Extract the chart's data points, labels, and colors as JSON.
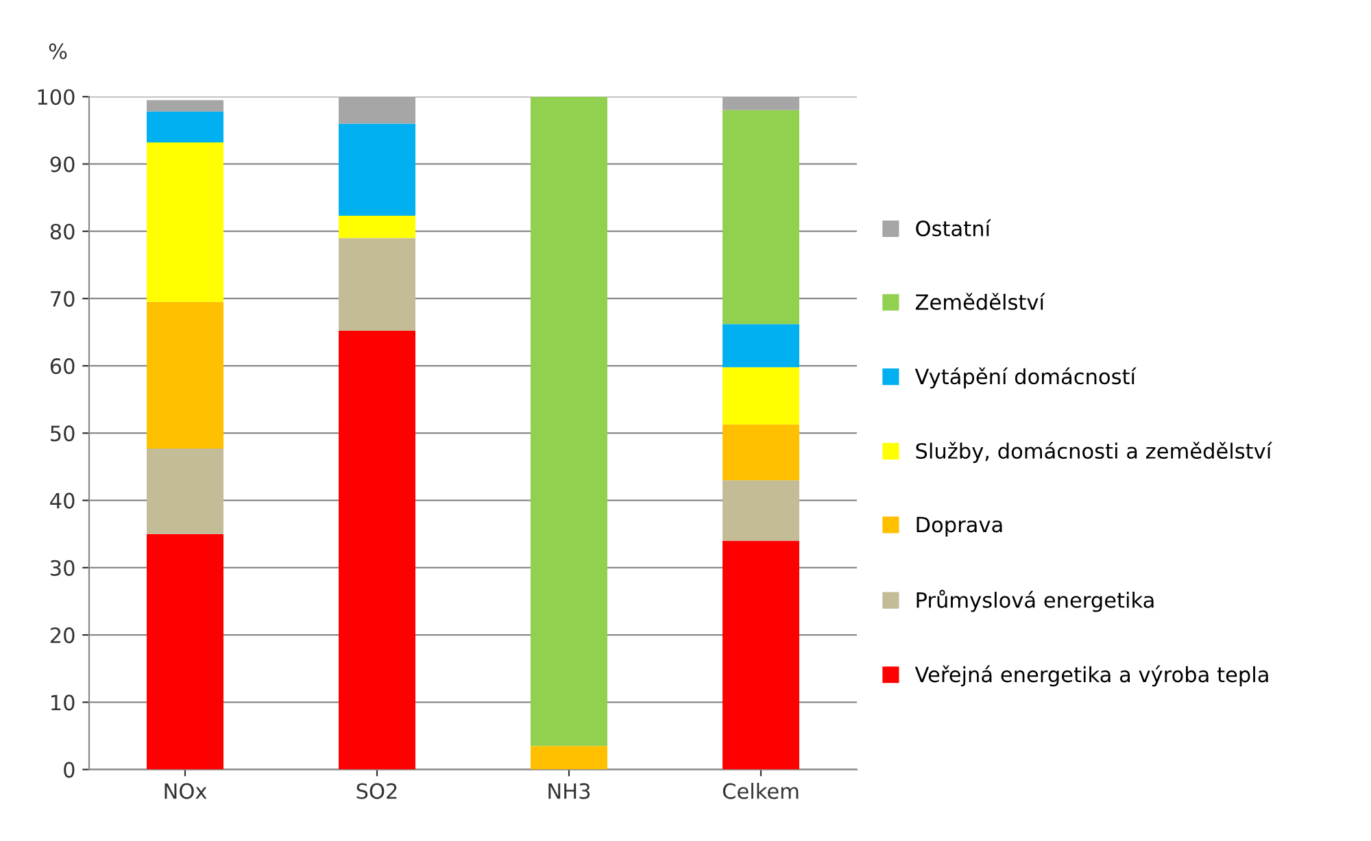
{
  "chart_data": {
    "type": "bar",
    "stacked": true,
    "ylabel": "%",
    "categories": [
      "NOx",
      "SO2",
      "NH3",
      "Celkem"
    ],
    "ylim": [
      0,
      100
    ],
    "yticks": [
      0,
      10,
      20,
      30,
      40,
      50,
      60,
      70,
      80,
      90,
      100
    ],
    "grid": "y",
    "legend": "right",
    "series": [
      {
        "name": "Veřejná energetika a výroba tepla",
        "color": "#ff0000",
        "values": [
          35,
          65.2,
          0,
          34
        ]
      },
      {
        "name": "Průmyslová energetika",
        "color": "#c4bc96",
        "values": [
          12.7,
          13.8,
          0,
          9
        ]
      },
      {
        "name": "Doprava",
        "color": "#ffc000",
        "values": [
          21.8,
          0,
          3.5,
          8.3
        ]
      },
      {
        "name": "Služby, domácnosti a zemědělství",
        "color": "#ffff00",
        "values": [
          23.7,
          3.3,
          0,
          8.5
        ]
      },
      {
        "name": "Vytápění domácností",
        "color": "#00b0f0",
        "values": [
          4.6,
          13.7,
          0,
          6.4
        ]
      },
      {
        "name": "Zemědělství",
        "color": "#92d050",
        "values": [
          0,
          0,
          96.5,
          31.8
        ]
      },
      {
        "name": "Ostatní",
        "color": "#a6a6a6",
        "values": [
          1.7,
          4,
          0,
          2
        ]
      }
    ]
  }
}
